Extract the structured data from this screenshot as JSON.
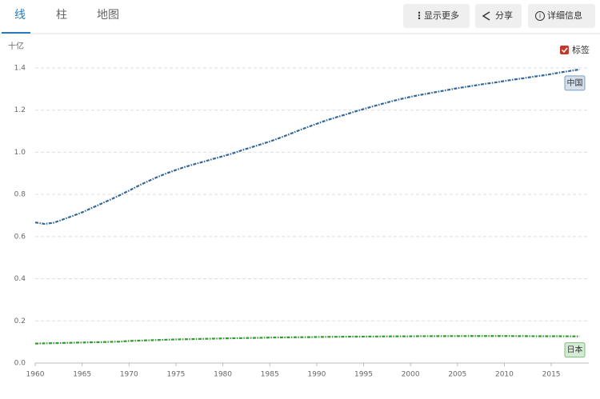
{
  "tabs": [
    "线",
    "柱",
    "地图"
  ],
  "buttons": [
    "显示更多",
    "分享",
    "详细信息"
  ],
  "label_toggle": "标签",
  "chart_data": {
    "type": "line",
    "y_label": "十亿",
    "x": [
      1960,
      1961,
      1962,
      1963,
      1964,
      1965,
      1966,
      1967,
      1968,
      1969,
      1970,
      1971,
      1972,
      1973,
      1974,
      1975,
      1976,
      1977,
      1978,
      1979,
      1980,
      1981,
      1982,
      1983,
      1984,
      1985,
      1986,
      1987,
      1988,
      1989,
      1990,
      1991,
      1992,
      1993,
      1994,
      1995,
      1996,
      1997,
      1998,
      1999,
      2000,
      2001,
      2002,
      2003,
      2004,
      2005,
      2006,
      2007,
      2008,
      2009,
      2010,
      2011,
      2012,
      2013,
      2014,
      2015,
      2016,
      2017,
      2018
    ],
    "series": [
      {
        "name": "中国",
        "color": "#336699",
        "values": [
          0.667,
          0.66,
          0.666,
          0.682,
          0.698,
          0.715,
          0.735,
          0.755,
          0.775,
          0.796,
          0.818,
          0.841,
          0.862,
          0.882,
          0.9,
          0.916,
          0.931,
          0.944,
          0.956,
          0.969,
          0.981,
          0.994,
          1.009,
          1.023,
          1.037,
          1.051,
          1.067,
          1.084,
          1.102,
          1.119,
          1.135,
          1.151,
          1.165,
          1.178,
          1.192,
          1.205,
          1.218,
          1.23,
          1.242,
          1.253,
          1.263,
          1.272,
          1.28,
          1.288,
          1.296,
          1.304,
          1.311,
          1.318,
          1.325,
          1.331,
          1.338,
          1.345,
          1.351,
          1.358,
          1.364,
          1.371,
          1.379,
          1.386,
          1.393
        ]
      },
      {
        "name": "日本",
        "color": "#339933",
        "values": [
          0.0925,
          0.0934,
          0.0943,
          0.0953,
          0.0963,
          0.0972,
          0.0982,
          0.0992,
          0.1003,
          0.1014,
          0.1047,
          0.1062,
          0.1077,
          0.1091,
          0.1106,
          0.1119,
          0.1128,
          0.1138,
          0.1149,
          0.1157,
          0.1168,
          0.1175,
          0.1183,
          0.119,
          0.1197,
          0.121,
          0.1215,
          0.1219,
          0.1223,
          0.1227,
          0.1235,
          0.124,
          0.1244,
          0.1248,
          0.1252,
          0.1254,
          0.1258,
          0.1261,
          0.1265,
          0.1267,
          0.1268,
          0.1273,
          0.1274,
          0.1276,
          0.1277,
          0.1278,
          0.1279,
          0.128,
          0.1281,
          0.128,
          0.1281,
          0.1278,
          0.1276,
          0.1273,
          0.1271,
          0.1271,
          0.127,
          0.1268,
          0.1265
        ]
      }
    ],
    "xlim": [
      1960,
      2019
    ],
    "xticks": [
      1960,
      1965,
      1970,
      1975,
      1980,
      1985,
      1990,
      1995,
      2000,
      2005,
      2010,
      2015
    ],
    "ylim": [
      0,
      1.4
    ],
    "yticks": [
      {
        "value": 0,
        "label": "0.0"
      },
      0.2,
      0.4,
      0.6,
      0.8,
      {
        "value": 1,
        "label": "1.0"
      },
      1.2,
      1.4
    ],
    "grid": true
  }
}
